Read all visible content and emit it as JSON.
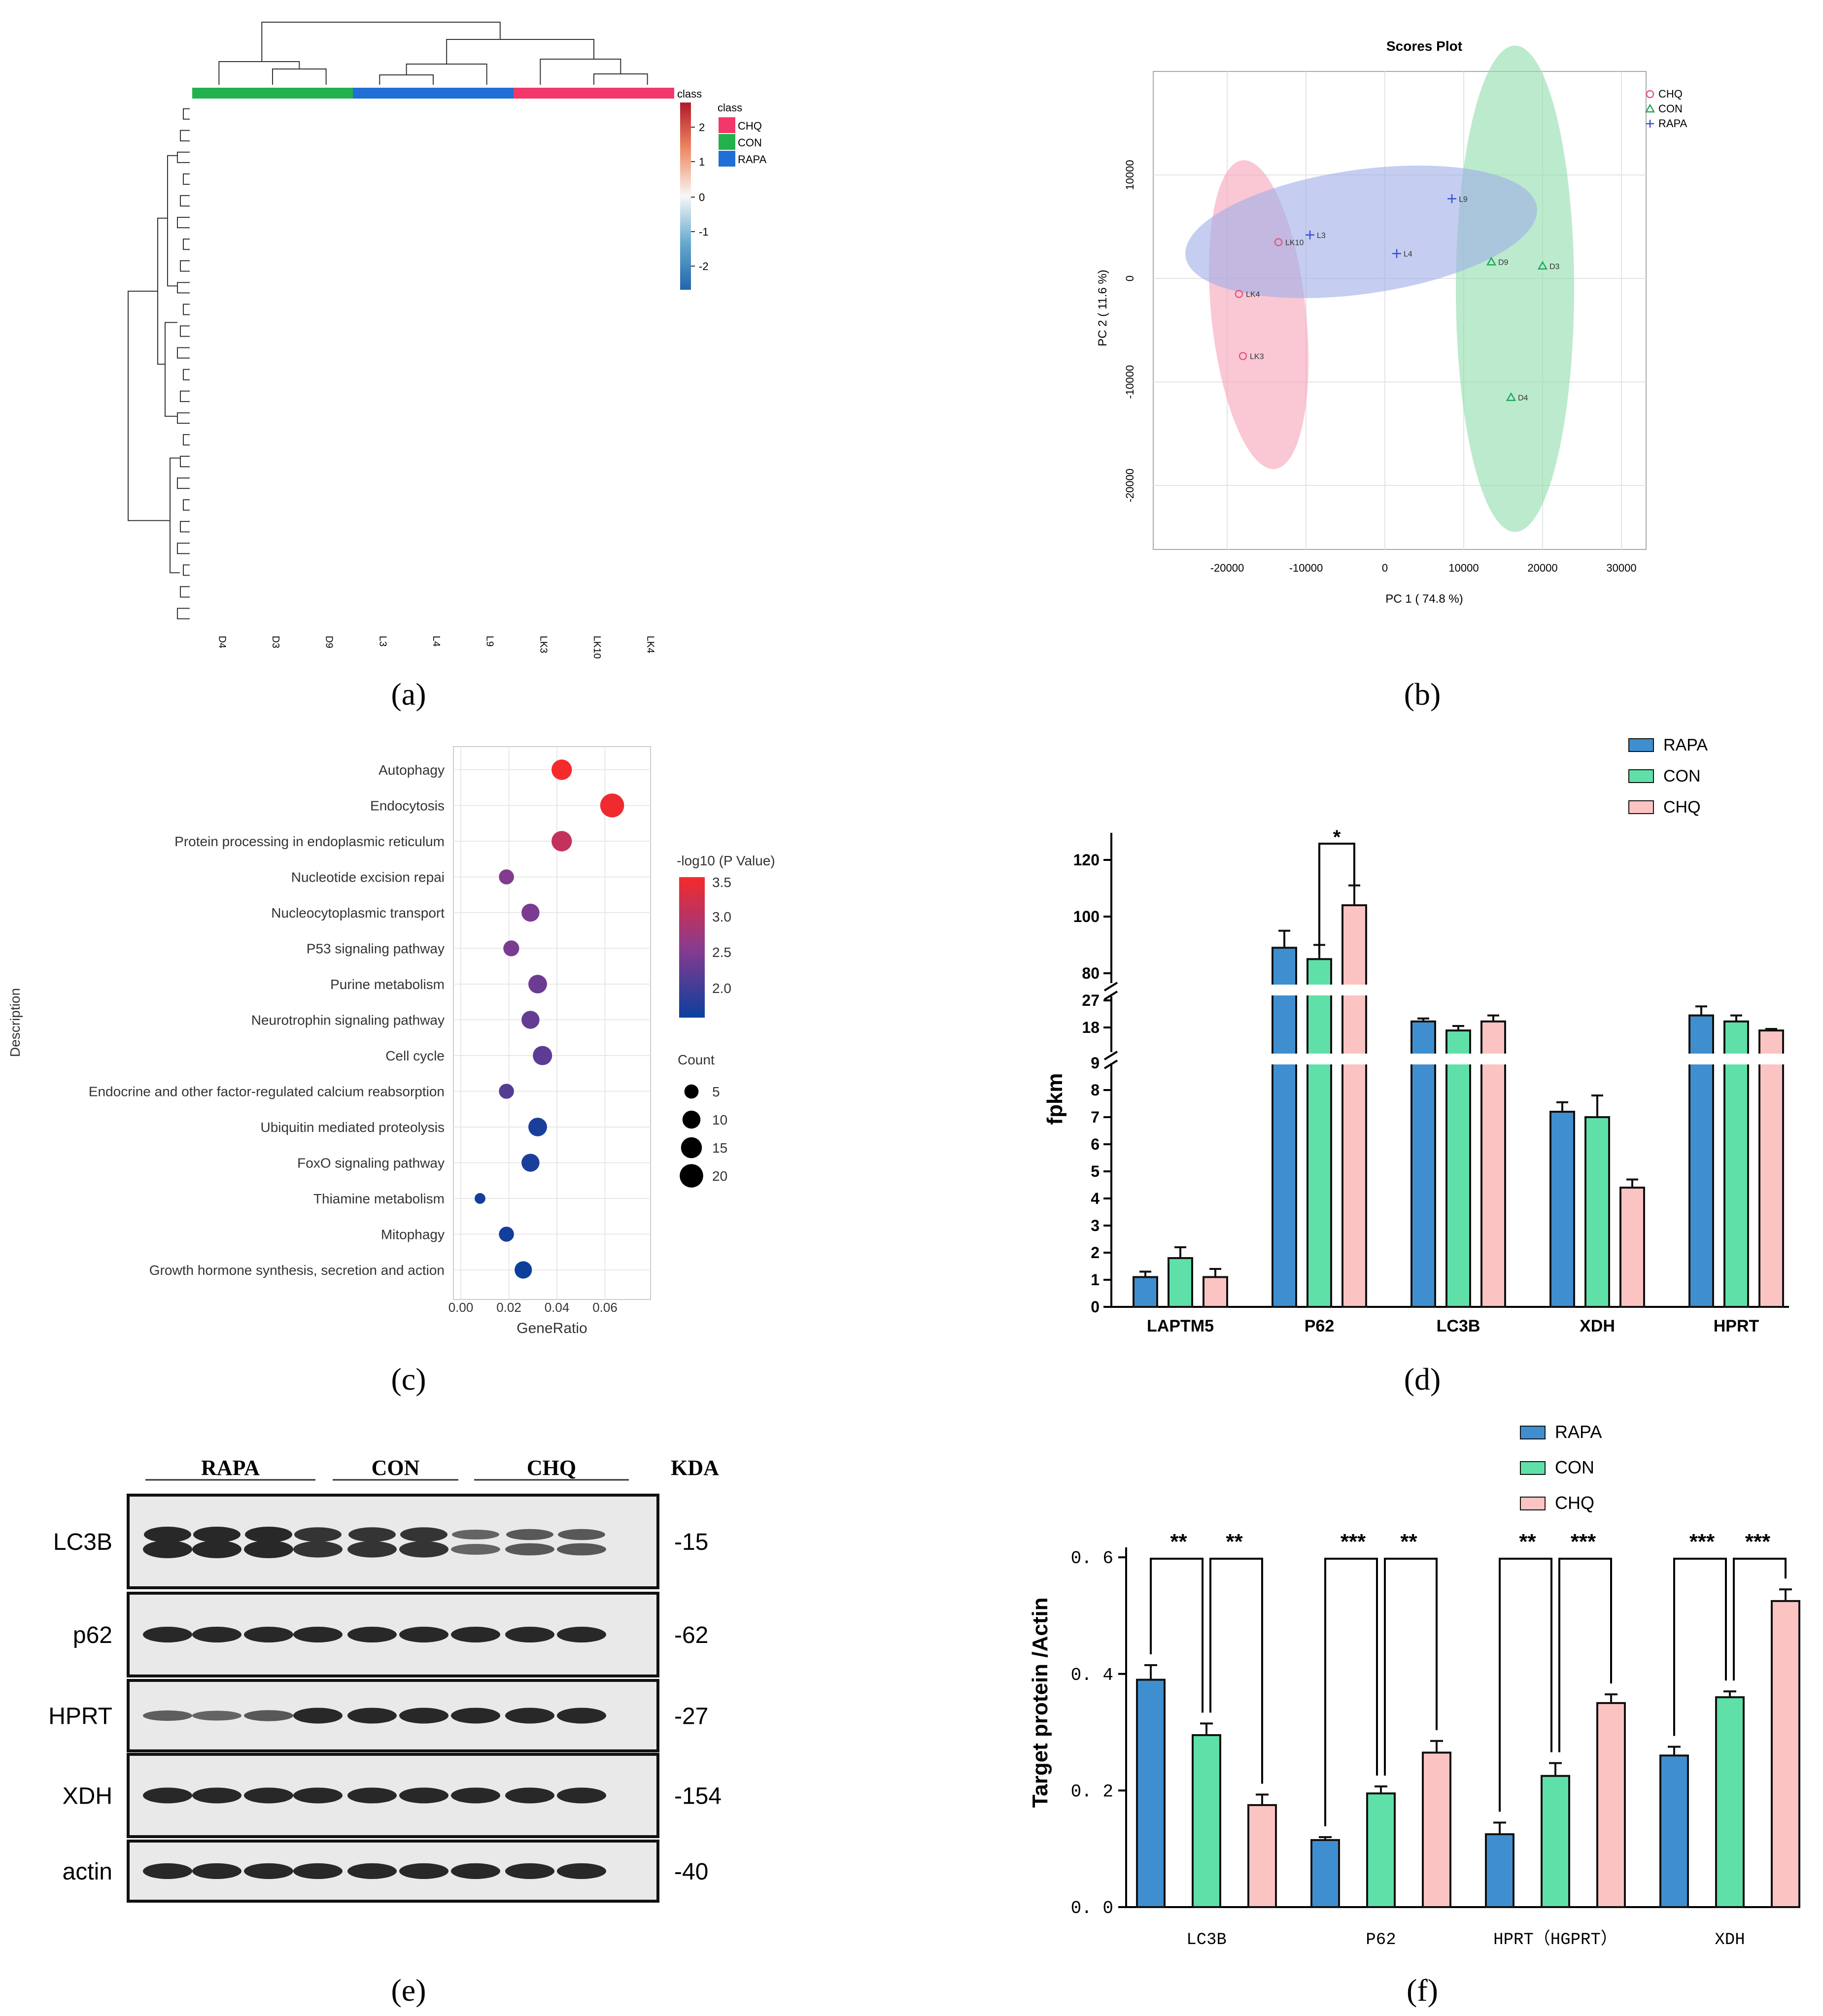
{
  "panels": {
    "a": "(a)",
    "b": "(b)",
    "c": "(c)",
    "d": "(d)",
    "e": "(e)",
    "f": "(f)"
  },
  "colors": {
    "rapa": "#3f8fd0",
    "con": "#5fe0a8",
    "chq": "#fcc3c3",
    "low": "#1560a8",
    "mid": "#f3f3f3",
    "high": "#c8102e",
    "green": "#22b14c",
    "blue": "#1f6fd6",
    "pink": "#f0386b"
  },
  "chart_data": [
    {
      "id": "a",
      "type": "heatmap",
      "columns": [
        "D4",
        "D3",
        "D9",
        "L3",
        "L4",
        "L9",
        "LK3",
        "LK10",
        "LK4"
      ],
      "groups": [
        {
          "name": "CON",
          "cols": 3
        },
        {
          "name": "RAPA",
          "cols": 3
        },
        {
          "name": "CHQ",
          "cols": 3
        }
      ],
      "legend_title": "class",
      "legend_labels": [
        "CHQ",
        "CON",
        "RAPA"
      ],
      "scale_title": "class",
      "scale_ticks": [
        "2",
        "1",
        "0",
        "-1",
        "-2"
      ]
    },
    {
      "id": "b",
      "type": "scatter",
      "title": "Scores Plot",
      "xlabel": "PC 1 ( 74.8 %)",
      "ylabel": "PC 2 ( 11.6 %)",
      "xlim": [
        -30000,
        30000
      ],
      "ylim": [
        -25000,
        20000
      ],
      "xticks": [
        -20000,
        -10000,
        0,
        10000,
        20000,
        30000
      ],
      "yticks": [
        10000,
        0,
        -10000,
        -20000
      ],
      "xtick_labels": [
        "-20000",
        "-10000",
        "0",
        "10000",
        "20000",
        "30000"
      ],
      "ytick_labels": [
        "10000",
        "0",
        "-10000",
        "-20000"
      ],
      "legend": [
        "CHQ",
        "CON",
        "RAPA"
      ],
      "points": [
        {
          "label": "LK10",
          "x": -13500,
          "y": 3500,
          "group": "CHQ"
        },
        {
          "label": "LK4",
          "x": -18500,
          "y": -1500,
          "group": "CHQ"
        },
        {
          "label": "LK3",
          "x": -18000,
          "y": -7500,
          "group": "CHQ"
        },
        {
          "label": "D9",
          "x": 13500,
          "y": 1600,
          "group": "CON"
        },
        {
          "label": "D3",
          "x": 20000,
          "y": 1200,
          "group": "CON"
        },
        {
          "label": "D4",
          "x": 16000,
          "y": -11500,
          "group": "CON"
        },
        {
          "label": "L3",
          "x": -9500,
          "y": 4200,
          "group": "RAPA"
        },
        {
          "label": "L4",
          "x": 1500,
          "y": 2400,
          "group": "RAPA"
        },
        {
          "label": "L9",
          "x": 8500,
          "y": 7700,
          "group": "RAPA"
        }
      ],
      "ellipses": [
        {
          "group": "CHQ",
          "cx": -16000,
          "cy": -3500,
          "rx": 6000,
          "ry": 15000,
          "angle": 6
        },
        {
          "group": "CON",
          "cx": 16500,
          "cy": -1000,
          "rx": 7500,
          "ry": 23500,
          "angle": 0
        },
        {
          "group": "RAPA",
          "cx": -3000,
          "cy": 4500,
          "rx": 22500,
          "ry": 6000,
          "angle": 8
        }
      ]
    },
    {
      "id": "c",
      "type": "scatter",
      "xlabel": "GeneRatio",
      "ylabel": "Description",
      "xlim": [
        -0.002,
        0.075
      ],
      "xticks": [
        0.0,
        0.02,
        0.04,
        0.06
      ],
      "xtick_labels": [
        "0.00",
        "0.02",
        "0.04",
        "0.06"
      ],
      "terms": [
        {
          "name": "Autophagy",
          "ratio": 0.042,
          "count": 14,
          "logp": 3.5
        },
        {
          "name": "Endocytosis",
          "ratio": 0.063,
          "count": 21,
          "logp": 3.45
        },
        {
          "name": "Protein processing in endoplasmic reticulum",
          "ratio": 0.042,
          "count": 14,
          "logp": 3.1
        },
        {
          "name": "Nucleotide excision repai",
          "ratio": 0.019,
          "count": 6,
          "logp": 2.6
        },
        {
          "name": "Nucleocytoplasmic transport",
          "ratio": 0.029,
          "count": 10,
          "logp": 2.55
        },
        {
          "name": "P53 signaling pathway",
          "ratio": 0.021,
          "count": 7,
          "logp": 2.55
        },
        {
          "name": "Purine metabolism",
          "ratio": 0.032,
          "count": 11,
          "logp": 2.45
        },
        {
          "name": "Neurotrophin signaling pathway",
          "ratio": 0.029,
          "count": 10,
          "logp": 2.4
        },
        {
          "name": "Cell cycle",
          "ratio": 0.034,
          "count": 12,
          "logp": 2.35
        },
        {
          "name": "Endocrine and other factor-regulated calcium reabsorption",
          "ratio": 0.019,
          "count": 6,
          "logp": 2.3
        },
        {
          "name": "Ubiquitin mediated proteolysis",
          "ratio": 0.032,
          "count": 11,
          "logp": 1.9
        },
        {
          "name": "FoxO signaling pathway",
          "ratio": 0.029,
          "count": 10,
          "logp": 1.9
        },
        {
          "name": "Thiamine metabolism",
          "ratio": 0.008,
          "count": 2,
          "logp": 1.85
        },
        {
          "name": "Mitophagy",
          "ratio": 0.019,
          "count": 6,
          "logp": 1.85
        },
        {
          "name": "Growth hormone synthesis, secretion and action",
          "ratio": 0.026,
          "count": 9,
          "logp": 1.8
        }
      ],
      "color_title": "-log10 (P Value)",
      "color_ticks": [
        "3.5",
        "3.0",
        "2.5",
        "2.0"
      ],
      "size_title": "Count",
      "size_ticks": [
        "5",
        "10",
        "15",
        "20"
      ]
    },
    {
      "id": "d",
      "type": "bar",
      "ylabel": "fpkm",
      "categories": [
        "LAPTM5",
        "P62",
        "LC3B",
        "XDH",
        "HPRT"
      ],
      "series": [
        {
          "name": "RAPA",
          "values": [
            1.1,
            89,
            20,
            7.2,
            22
          ],
          "errors": [
            0.2,
            6,
            1,
            0.35,
            3
          ]
        },
        {
          "name": "CON",
          "values": [
            1.8,
            85,
            17,
            7.0,
            20
          ],
          "errors": [
            0.4,
            5,
            1.5,
            0.8,
            2
          ]
        },
        {
          "name": "CHQ",
          "values": [
            1.1,
            104,
            20,
            4.4,
            17
          ],
          "errors": [
            0.3,
            7,
            2,
            0.3,
            0.5
          ]
        }
      ],
      "lower_ticks": [
        "0",
        "1",
        "2",
        "3",
        "4",
        "5",
        "6",
        "7",
        "8",
        "9"
      ],
      "mid_ticks": [
        "18",
        "27"
      ],
      "upper_ticks": [
        "80",
        "100",
        "120"
      ],
      "significance": "*"
    },
    {
      "id": "f",
      "type": "bar",
      "ylabel": "Target protein /Actin",
      "ylim": [
        0,
        0.6
      ],
      "ytick_labels": [
        "0. 0",
        "0. 2",
        "0. 4",
        "0. 6"
      ],
      "categories": [
        "LC3B",
        "P62",
        "HPRT（HGPRT）",
        "XDH"
      ],
      "series": [
        {
          "name": "RAPA",
          "values": [
            0.39,
            0.115,
            0.125,
            0.26
          ],
          "errors": [
            0.025,
            0.005,
            0.02,
            0.015
          ]
        },
        {
          "name": "CON",
          "values": [
            0.295,
            0.195,
            0.225,
            0.36
          ],
          "errors": [
            0.02,
            0.012,
            0.022,
            0.01
          ]
        },
        {
          "name": "CHQ",
          "values": [
            0.175,
            0.265,
            0.35,
            0.525
          ],
          "errors": [
            0.018,
            0.02,
            0.015,
            0.02
          ]
        }
      ],
      "significance": [
        [
          "**",
          "**"
        ],
        [
          "***",
          "**"
        ],
        [
          "**",
          "***"
        ],
        [
          "***",
          "***"
        ]
      ]
    }
  ],
  "blot": {
    "groups": [
      "RAPA",
      "CON",
      "CHQ"
    ],
    "unit": "KDA",
    "rows": [
      {
        "label": "LC3B",
        "kda": "-15"
      },
      {
        "label": "p62",
        "kda": "-62"
      },
      {
        "label": "HPRT",
        "kda": "-27"
      },
      {
        "label": "XDH",
        "kda": "-154"
      },
      {
        "label": "actin",
        "kda": "-40"
      }
    ]
  }
}
